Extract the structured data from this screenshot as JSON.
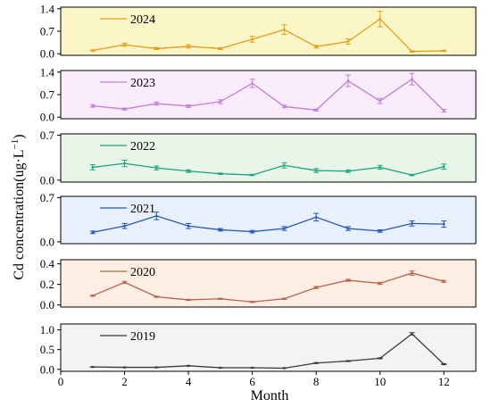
{
  "chart_data": {
    "type": "line",
    "shared_x": {
      "label": "Month",
      "ticks": [
        0,
        2,
        4,
        6,
        8,
        10,
        12
      ],
      "lim": [
        0,
        13
      ]
    },
    "ylabel_main": "Cd concentration(ug·L",
    "ylabel_sup": "−1",
    "ylabel_close": ")",
    "panels": [
      {
        "name": "2024",
        "color": "#e3a017",
        "bg": "#fbf6c7",
        "ylim": [
          -0.05,
          1.45
        ],
        "yticks": [
          "0.0",
          "0.7",
          "1.4"
        ],
        "ytick_values": [
          0,
          0.7,
          1.4
        ],
        "x": [
          1,
          2,
          3,
          4,
          5,
          6,
          7,
          8,
          9,
          10,
          11,
          12
        ],
        "values": [
          0.1,
          0.28,
          0.16,
          0.23,
          0.16,
          0.45,
          0.75,
          0.22,
          0.38,
          1.08,
          0.07,
          0.09
        ],
        "errors": [
          0.02,
          0.05,
          0.03,
          0.05,
          0.03,
          0.09,
          0.15,
          0.04,
          0.08,
          0.24,
          0.02,
          0.02
        ]
      },
      {
        "name": "2023",
        "color": "#c07fd6",
        "bg": "#fbecfb",
        "ylim": [
          -0.05,
          1.45
        ],
        "yticks": [
          "0.0",
          "0.7",
          "1.4"
        ],
        "ytick_values": [
          0,
          0.7,
          1.4
        ],
        "x": [
          1,
          2,
          3,
          4,
          5,
          6,
          7,
          8,
          9,
          10,
          11,
          12
        ],
        "values": [
          0.35,
          0.25,
          0.42,
          0.34,
          0.48,
          1.05,
          0.33,
          0.22,
          1.13,
          0.5,
          1.18,
          0.2
        ],
        "errors": [
          0.04,
          0.03,
          0.05,
          0.04,
          0.06,
          0.13,
          0.04,
          0.03,
          0.18,
          0.08,
          0.18,
          0.04
        ]
      },
      {
        "name": "2022",
        "color": "#1aa67c",
        "bg": "#eaf5ea",
        "ylim": [
          -0.03,
          0.72
        ],
        "yticks": [
          "0.0",
          "0.7"
        ],
        "ytick_values": [
          0,
          0.7
        ],
        "x": [
          1,
          2,
          3,
          4,
          5,
          6,
          7,
          8,
          9,
          10,
          11,
          12
        ],
        "values": [
          0.2,
          0.26,
          0.19,
          0.14,
          0.1,
          0.08,
          0.23,
          0.15,
          0.14,
          0.2,
          0.08,
          0.21
        ],
        "errors": [
          0.04,
          0.05,
          0.03,
          0.02,
          0.01,
          0.01,
          0.04,
          0.03,
          0.02,
          0.03,
          0.01,
          0.04
        ]
      },
      {
        "name": "2021",
        "color": "#2657b3",
        "bg": "#e8f0fb",
        "ylim": [
          -0.03,
          0.72
        ],
        "yticks": [
          "0.0",
          "0.7"
        ],
        "ytick_values": [
          0,
          0.7
        ],
        "x": [
          1,
          2,
          3,
          4,
          5,
          6,
          7,
          8,
          9,
          10,
          11,
          12
        ],
        "values": [
          0.15,
          0.25,
          0.41,
          0.25,
          0.19,
          0.16,
          0.21,
          0.39,
          0.21,
          0.17,
          0.29,
          0.28
        ],
        "errors": [
          0.02,
          0.04,
          0.06,
          0.04,
          0.02,
          0.02,
          0.03,
          0.06,
          0.03,
          0.02,
          0.04,
          0.05
        ]
      },
      {
        "name": "2020",
        "color": "#b5654c",
        "bg": "#fdeee4",
        "ylim": [
          -0.02,
          0.44
        ],
        "yticks": [
          "0.0",
          "0.2",
          "0.4"
        ],
        "ytick_values": [
          0,
          0.2,
          0.4
        ],
        "x": [
          1,
          2,
          3,
          4,
          5,
          6,
          7,
          8,
          9,
          10,
          11,
          12
        ],
        "values": [
          0.09,
          0.22,
          0.08,
          0.05,
          0.06,
          0.03,
          0.06,
          0.17,
          0.24,
          0.21,
          0.31,
          0.23
        ],
        "errors": [
          0.005,
          0.01,
          0.005,
          0.005,
          0.005,
          0.005,
          0.005,
          0.01,
          0.01,
          0.01,
          0.02,
          0.01
        ]
      },
      {
        "name": "2019",
        "color": "#3a3a3a",
        "bg": "#f3f3f3",
        "ylim": [
          -0.05,
          1.15
        ],
        "yticks": [
          "0.0",
          "0.5",
          "1.0"
        ],
        "ytick_values": [
          0,
          0.5,
          1.0
        ],
        "x": [
          1,
          2,
          3,
          4,
          5,
          6,
          7,
          8,
          9,
          10,
          11,
          12
        ],
        "values": [
          0.06,
          0.05,
          0.05,
          0.09,
          0.04,
          0.04,
          0.03,
          0.16,
          0.21,
          0.28,
          0.9,
          0.13
        ],
        "errors": [
          0.005,
          0.005,
          0.005,
          0.005,
          0.005,
          0.005,
          0.005,
          0.01,
          0.01,
          0.01,
          0.03,
          0.01
        ]
      }
    ]
  }
}
